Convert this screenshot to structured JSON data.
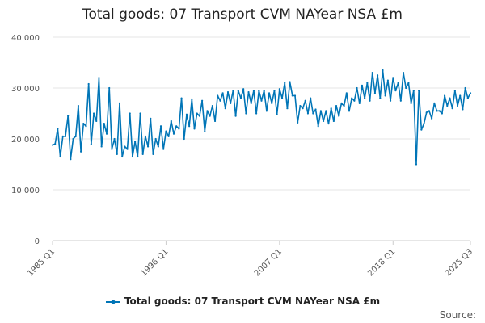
{
  "chart_data": {
    "type": "line",
    "title": "Total goods: 07 Transport CVM NAYear NSA £m",
    "xlabel": "",
    "ylabel": "",
    "ylim": [
      0,
      40000
    ],
    "y_ticks": [
      0,
      10000,
      20000,
      30000,
      40000
    ],
    "y_tick_labels": [
      "0",
      "10 000",
      "20 000",
      "30 000",
      "40 000"
    ],
    "x_tick_labels": [
      "1985 Q1",
      "1996 Q1",
      "2007 Q1",
      "2018 Q1",
      "2025 Q3"
    ],
    "x_tick_index": [
      0,
      44,
      88,
      132,
      162
    ],
    "legend": {
      "label": "Total goods: 07 Transport CVM NAYear NSA £m",
      "position": "bottom-center"
    },
    "source_label": "Source:",
    "colors": {
      "series": "#0075b7",
      "grid": "#e6e6e6",
      "axis": "#cccccc"
    },
    "series": [
      {
        "name": "Total goods: 07 Transport CVM NAYear NSA £m",
        "x_start": "1985 Q1",
        "x_end": "2025 Q3",
        "values": [
          18800,
          19000,
          22000,
          16500,
          20500,
          20500,
          24500,
          16000,
          20000,
          20500,
          26500,
          17500,
          23000,
          22500,
          30800,
          19000,
          25000,
          23500,
          32000,
          18500,
          23000,
          21000,
          30000,
          18000,
          20000,
          17000,
          27000,
          16500,
          18500,
          18000,
          25000,
          16500,
          19500,
          16500,
          25000,
          17000,
          20500,
          18500,
          24000,
          17000,
          20000,
          18500,
          22500,
          18000,
          21500,
          20500,
          23500,
          21000,
          22500,
          22000,
          28000,
          20000,
          24800,
          22500,
          27800,
          22000,
          25000,
          24500,
          27500,
          21500,
          25500,
          24500,
          26500,
          23500,
          28500,
          27500,
          29000,
          26000,
          29200,
          27000,
          29500,
          24500,
          29500,
          28000,
          29800,
          25000,
          29200,
          27000,
          29500,
          25000,
          29500,
          27500,
          29500,
          25500,
          29000,
          27000,
          29500,
          24800,
          29800,
          28000,
          31000,
          26000,
          31200,
          28500,
          28500,
          23200,
          26500,
          26000,
          27500,
          25000,
          28000,
          25000,
          25800,
          22500,
          25500,
          23500,
          25500,
          23000,
          26000,
          23500,
          26500,
          24500,
          27000,
          26500,
          29000,
          25500,
          28000,
          27500,
          30000,
          27000,
          30500,
          28000,
          31000,
          27500,
          33000,
          29000,
          32500,
          28000,
          33500,
          28500,
          31500,
          27500,
          32000,
          29500,
          31000,
          27500,
          33000,
          30000,
          31000,
          27000,
          29500,
          15000,
          29500,
          21800,
          23000,
          25200,
          25500,
          24000,
          27000,
          25500,
          25500,
          25000,
          28500,
          26500,
          28000,
          26000,
          29500,
          26500,
          28500,
          25800,
          30000,
          28000,
          29000
        ]
      }
    ]
  }
}
